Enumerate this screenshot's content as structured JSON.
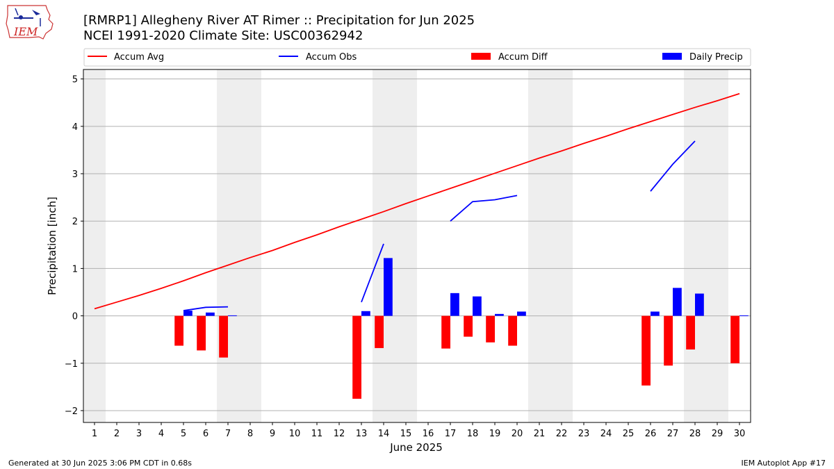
{
  "title_lines": [
    "[RMRP1] Allegheny River  AT Rimer :: Precipitation for Jun 2025",
    "NCEI 1991-2020 Climate Site: USC00362942"
  ],
  "logo_text": "IEM",
  "footer_left": "Generated at 30 Jun 2025 3:06 PM CDT in 0.68s",
  "footer_right": "IEM Autoplot App #17",
  "colors": {
    "accum_avg": "#ff0000",
    "accum_obs": "#0000ff",
    "accum_diff": "#ff0000",
    "daily_precip": "#0000ff",
    "weekend_band": "#eeeeee",
    "grid": "#b0b0b0"
  },
  "chart_data": {
    "type": "bar",
    "xlabel": "June 2025",
    "ylabel": "Precipitation [inch]",
    "ylim": [
      -2.25,
      5.2
    ],
    "yticks": [
      -2,
      -1,
      0,
      1,
      2,
      3,
      4,
      5
    ],
    "ytick_labels": [
      "−2",
      "−1",
      "0",
      "1",
      "2",
      "3",
      "4",
      "5"
    ],
    "xlim": [
      0.5,
      30.5
    ],
    "x": [
      1,
      2,
      3,
      4,
      5,
      6,
      7,
      8,
      9,
      10,
      11,
      12,
      13,
      14,
      15,
      16,
      17,
      18,
      19,
      20,
      21,
      22,
      23,
      24,
      25,
      26,
      27,
      28,
      29,
      30
    ],
    "x_labels": [
      "1",
      "2",
      "3",
      "4",
      "5",
      "6",
      "7",
      "8",
      "9",
      "10",
      "11",
      "12",
      "13",
      "14",
      "15",
      "16",
      "17",
      "18",
      "19",
      "20",
      "21",
      "22",
      "23",
      "24",
      "25",
      "26",
      "27",
      "28",
      "29",
      "30"
    ],
    "grid": "horizontal",
    "legend_position": "top",
    "weekend_days": [
      1,
      7,
      8,
      14,
      15,
      21,
      22,
      28,
      29
    ],
    "series": [
      {
        "name": "Accum Avg",
        "kind": "line",
        "values": [
          0.15,
          0.29,
          0.43,
          0.58,
          0.74,
          0.91,
          1.07,
          1.23,
          1.38,
          1.55,
          1.71,
          1.88,
          2.04,
          2.2,
          2.37,
          2.53,
          2.69,
          2.85,
          3.01,
          3.17,
          3.33,
          3.48,
          3.64,
          3.79,
          3.95,
          4.1,
          4.25,
          4.4,
          4.54,
          4.69
        ]
      },
      {
        "name": "Accum Obs",
        "kind": "line",
        "values": [
          null,
          null,
          null,
          null,
          0.11,
          0.18,
          0.19,
          null,
          null,
          null,
          null,
          null,
          0.29,
          1.52,
          null,
          null,
          2.0,
          2.41,
          2.45,
          2.54,
          null,
          null,
          null,
          null,
          null,
          2.63,
          3.2,
          3.69,
          null,
          null
        ]
      },
      {
        "name": "Accum Diff",
        "kind": "bar",
        "values": [
          null,
          null,
          null,
          null,
          -0.63,
          -0.73,
          -0.88,
          null,
          null,
          null,
          null,
          null,
          -1.75,
          -0.68,
          null,
          null,
          -0.69,
          -0.44,
          -0.56,
          -0.63,
          null,
          null,
          null,
          null,
          null,
          -1.47,
          -1.05,
          -0.71,
          null,
          -1.0
        ]
      },
      {
        "name": "Daily Precip",
        "kind": "bar",
        "values": [
          null,
          null,
          null,
          null,
          0.11,
          0.07,
          0.01,
          null,
          null,
          null,
          null,
          null,
          0.1,
          1.22,
          null,
          null,
          0.48,
          0.41,
          0.04,
          0.09,
          null,
          null,
          null,
          null,
          null,
          0.09,
          0.59,
          0.47,
          null,
          0.01
        ]
      }
    ]
  }
}
